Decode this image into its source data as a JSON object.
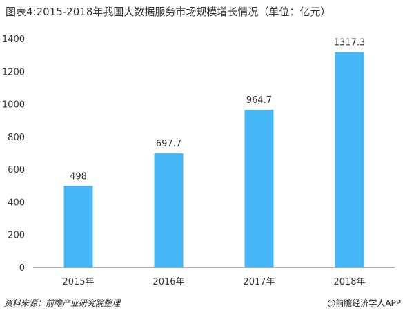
{
  "header": {
    "title": "图表4:2015-2018年我国大数据服务市场规模增长情况（单位：亿元）"
  },
  "footer": {
    "source": "资料来源：前瞻产业研究院整理",
    "brand": "@前瞻经济学人APP"
  },
  "colors": {
    "bar": "#45b7f7",
    "axis": "#b0b0b0",
    "text": "#333333"
  },
  "chart_data": {
    "type": "bar",
    "title": "图表4:2015-2018年我国大数据服务市场规模增长情况（单位：亿元）",
    "categories": [
      "2015年",
      "2016年",
      "2017年",
      "2018年"
    ],
    "values": [
      498,
      697.7,
      964.7,
      1317.3
    ],
    "value_labels": [
      "498",
      "697.7",
      "964.7",
      "1317.3"
    ],
    "ylim": [
      0,
      1400
    ],
    "yticks": [
      0,
      200,
      400,
      600,
      800,
      1000,
      1200,
      1400
    ],
    "grid": false,
    "legend": "none"
  }
}
